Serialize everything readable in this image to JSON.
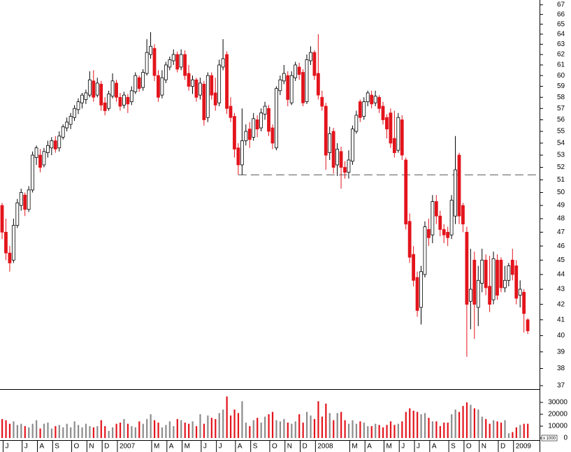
{
  "chart_data": [
    {
      "type": "candlestick",
      "categories": [
        null,
        "J",
        null,
        null,
        null,
        null,
        "J",
        null,
        null,
        null,
        "A",
        null,
        null,
        null,
        "S",
        null,
        null,
        null,
        null,
        "O",
        null,
        null,
        null,
        "N",
        null,
        null,
        null,
        "D",
        null,
        null,
        null,
        "2007",
        null,
        null,
        null,
        null,
        null,
        null,
        null,
        null,
        "M",
        null,
        null,
        null,
        "A",
        null,
        null,
        null,
        "M",
        null,
        null,
        null,
        null,
        "J",
        null,
        null,
        null,
        "J",
        null,
        null,
        null,
        null,
        "A",
        null,
        null,
        null,
        "S",
        null,
        null,
        null,
        null,
        "O",
        null,
        null,
        null,
        "N",
        null,
        null,
        null,
        "D",
        null,
        null,
        null,
        "2008",
        null,
        null,
        null,
        null,
        null,
        null,
        null,
        null,
        "M",
        null,
        null,
        null,
        "A",
        null,
        null,
        null,
        null,
        "M",
        null,
        null,
        null,
        "J",
        null,
        null,
        null,
        "J",
        null,
        null,
        null,
        "A",
        null,
        null,
        null,
        null,
        "S",
        null,
        null,
        null,
        "O",
        null,
        null,
        null,
        "N",
        null,
        null,
        null,
        null,
        "D",
        null,
        null,
        null,
        "2009",
        null,
        null,
        null
      ],
      "open": [
        49,
        47,
        45.5,
        45,
        47.5,
        49,
        49.8,
        48.7,
        50.2,
        52.8,
        53,
        52.2,
        53.2,
        53.6,
        54.2,
        53.6,
        54.5,
        55.3,
        55.6,
        56.2,
        56.9,
        57.5,
        57.8,
        58.2,
        59.5,
        58.2,
        59.2,
        57.5,
        57,
        58.1,
        59.3,
        58,
        57.3,
        58,
        57.6,
        58.5,
        59.8,
        58.9,
        60.2,
        62,
        62.6,
        60,
        58.2,
        59.6,
        60.8,
        61.4,
        62,
        60.8,
        62,
        60.2,
        59,
        59.6,
        58.2,
        59.2,
        56.2,
        60,
        58.4,
        57.5,
        60.8,
        62,
        57.2,
        56.3,
        53.6,
        52.2,
        54.2,
        55.2,
        54.5,
        56,
        55.3,
        56.5,
        57,
        55.3,
        53.6,
        58.6,
        59.5,
        60,
        57.5,
        59.8,
        60.8,
        60.3,
        57.6,
        61.4,
        62.2,
        60.2,
        58,
        57.2,
        53.2,
        55,
        52.2,
        53.3,
        52,
        51.6,
        52.5,
        55,
        57.6,
        56.3,
        57.6,
        58.2,
        57.5,
        58,
        57.2,
        56.2,
        56.6,
        54.4,
        53.4,
        56,
        52.6,
        47.8,
        45.4,
        43.8,
        41.8,
        44,
        47.2,
        46.8,
        49.3,
        48.2,
        47.2,
        47,
        46.8,
        48.2,
        53,
        49,
        47,
        42.2,
        45,
        41.8,
        43.4,
        45,
        43.2,
        42.3,
        45,
        45,
        43.1,
        43.6,
        45,
        44.6,
        42.6,
        42.8,
        41
      ],
      "high": [
        49.2,
        48,
        46,
        48,
        49.5,
        50.3,
        50,
        50.5,
        53.3,
        53.8,
        53.5,
        53.6,
        54.2,
        54.5,
        54.6,
        55,
        55.6,
        56.2,
        56.6,
        57.3,
        57.9,
        58.4,
        58.7,
        60.4,
        60.5,
        59.8,
        59.5,
        58,
        58.6,
        60.2,
        59.6,
        58.4,
        58.5,
        58.3,
        59,
        60.3,
        60,
        60.6,
        63.5,
        64.2,
        63,
        60.5,
        60.5,
        61.3,
        61.8,
        62.5,
        62.3,
        62.5,
        62.4,
        61,
        60,
        59.8,
        59.8,
        59.5,
        60.3,
        60.3,
        59.8,
        61.5,
        63.5,
        62.3,
        58,
        56.6,
        54,
        57,
        55.6,
        55.8,
        56.6,
        56.4,
        57,
        57.6,
        57.3,
        55.6,
        59,
        60,
        61,
        60.4,
        60.4,
        61.3,
        61.2,
        60.6,
        62,
        62.8,
        62.4,
        64,
        58.6,
        57.5,
        55.4,
        55.3,
        54,
        53.7,
        52.5,
        53.4,
        55.5,
        56.8,
        57.8,
        58,
        58.6,
        58.6,
        58.6,
        58.2,
        57.6,
        56.5,
        57,
        56.8,
        56.6,
        56.4,
        52.8,
        48.4,
        46,
        44.2,
        44.6,
        47.8,
        48,
        49.8,
        49.8,
        48.6,
        47.6,
        47.4,
        49.8,
        54.6,
        53.2,
        49.2,
        47.4,
        45.8,
        45.6,
        44.6,
        45.8,
        45.4,
        45.3,
        45.6,
        45.4,
        45.2,
        44.6,
        44.8,
        45.8,
        45,
        43.6,
        43,
        41.1
      ],
      "low": [
        46.5,
        45,
        44.2,
        44.8,
        47.3,
        48.6,
        48.2,
        48.5,
        50,
        52.2,
        51.6,
        52,
        52.8,
        53,
        53.2,
        53.3,
        54.3,
        55,
        55.2,
        55.9,
        56.5,
        57,
        57.4,
        58,
        57.6,
        58,
        56.8,
        56.4,
        56.8,
        57.9,
        57.6,
        56.8,
        57,
        56.6,
        57.3,
        58.3,
        58.5,
        58.6,
        60,
        61.6,
        59.5,
        57.6,
        57.9,
        59.3,
        60.5,
        61,
        60.3,
        60.5,
        59.6,
        58.6,
        58.3,
        57.6,
        57.8,
        55.5,
        55.8,
        57.8,
        56.8,
        57.2,
        60.5,
        56.5,
        55.8,
        52.8,
        51.4,
        51.4,
        53.8,
        53.6,
        54.2,
        54.5,
        55,
        56,
        54.6,
        53.5,
        53.4,
        58.2,
        59.2,
        57.2,
        57.3,
        59.5,
        59.6,
        57.2,
        57.4,
        61,
        59.6,
        57.8,
        56.8,
        51.8,
        52.6,
        51.5,
        51.3,
        50.3,
        51.1,
        51.1,
        52.2,
        54.8,
        55.8,
        56,
        57.2,
        57,
        57.2,
        56.6,
        55.6,
        54.4,
        53.6,
        52.8,
        53.2,
        52.6,
        47.2,
        44.8,
        43.2,
        41.2,
        40.7,
        43.8,
        46,
        46.2,
        47.6,
        46.7,
        46.2,
        46,
        46.5,
        47.6,
        47.6,
        47,
        38.7,
        40.4,
        39.8,
        40.6,
        42.8,
        42.6,
        41.5,
        42,
        42.3,
        42.8,
        42.8,
        43.2,
        43.6,
        42,
        41.8,
        40.2,
        40.1
      ],
      "close": [
        47,
        45.5,
        44.8,
        47.5,
        49.2,
        50,
        48.7,
        50.2,
        53,
        53.6,
        52,
        53.3,
        53.8,
        54.2,
        53.5,
        54.6,
        55.4,
        55.8,
        56.3,
        57,
        57.6,
        58.2,
        58.4,
        59.6,
        58,
        59.3,
        57.3,
        56.8,
        58.3,
        59.5,
        58,
        57.2,
        58.2,
        57.4,
        58.6,
        60,
        58.8,
        60.3,
        62.2,
        62.8,
        60,
        58,
        59.8,
        61,
        61.5,
        62,
        60.6,
        62,
        60,
        59,
        59.6,
        58,
        59.3,
        56,
        60,
        58.2,
        57.3,
        61,
        61.6,
        57,
        56.2,
        53.5,
        52.2,
        54.2,
        55,
        54.3,
        56.1,
        55.2,
        56.6,
        57.2,
        55,
        54,
        58.8,
        59.6,
        60.2,
        57.8,
        60,
        61,
        60.1,
        57.5,
        61.5,
        62.2,
        60,
        58.2,
        57.2,
        53,
        54.8,
        52,
        53.5,
        52,
        51.6,
        52.6,
        55.2,
        56.4,
        56.2,
        57.6,
        58.4,
        57.4,
        58.1,
        57,
        56,
        55.2,
        54,
        53.2,
        56.2,
        53,
        47.6,
        45.2,
        43.6,
        41.6,
        44.2,
        47.4,
        46.6,
        49.3,
        48.2,
        47.2,
        46.8,
        46.6,
        49.4,
        51.8,
        48.2,
        47.6,
        42,
        43,
        42,
        43.6,
        45,
        43.1,
        42,
        45.1,
        42.6,
        43.1,
        43.6,
        44.6,
        44,
        42.4,
        43,
        41.4,
        40.3
      ],
      "ylim": [
        36.8,
        67.5
      ],
      "yticks": [
        37,
        38,
        39,
        40,
        41,
        42,
        43,
        44,
        45,
        46,
        47,
        48,
        49,
        50,
        51,
        52,
        53,
        54,
        55,
        56,
        57,
        58,
        59,
        60,
        61,
        62,
        63,
        64,
        65,
        66,
        67
      ],
      "log_scale": true,
      "up_color": "#ffffff",
      "down_color": "#e3141c",
      "hline": {
        "value": 51.4,
        "start": 62
      }
    },
    {
      "type": "bar",
      "values": [
        16000,
        15000,
        12000,
        14000,
        11000,
        12000,
        10000,
        9000,
        12000,
        15000,
        8000,
        12000,
        13000,
        8000,
        10000,
        11000,
        9000,
        12000,
        9000,
        14000,
        11000,
        9000,
        12000,
        10000,
        9000,
        10000,
        15000,
        10000,
        6000,
        9000,
        12000,
        13000,
        16000,
        12000,
        10000,
        9000,
        14000,
        12000,
        16000,
        20000,
        15000,
        13000,
        9000,
        11000,
        14000,
        10000,
        16000,
        15000,
        13000,
        12000,
        14000,
        10000,
        20000,
        12000,
        19000,
        17000,
        16000,
        21000,
        24000,
        35000,
        19000,
        24000,
        21000,
        31000,
        13000,
        10000,
        15000,
        17000,
        13000,
        18000,
        20000,
        22000,
        15000,
        14000,
        16000,
        13000,
        12000,
        14000,
        20000,
        13000,
        22000,
        19000,
        16000,
        31000,
        18000,
        29000,
        21000,
        15000,
        21000,
        22000,
        15000,
        12000,
        15000,
        12000,
        14000,
        13000,
        10000,
        10000,
        12000,
        11000,
        9000,
        11000,
        14000,
        11000,
        12000,
        14000,
        22000,
        25000,
        23000,
        22000,
        20000,
        21000,
        17000,
        14000,
        14000,
        10000,
        13000,
        13000,
        20000,
        24000,
        22000,
        27000,
        30000,
        28000,
        25000,
        24000,
        18000,
        16000,
        12000,
        15000,
        14000,
        13000,
        15000,
        4000,
        5000,
        9000,
        11000,
        12000,
        12000
      ],
      "ylim": [
        0,
        40000
      ],
      "yticks": [
        0,
        10000,
        20000,
        30000
      ],
      "unit_label": "x 1000",
      "up_color": "#8c8c8c",
      "down_color": "#e3141c"
    }
  ]
}
